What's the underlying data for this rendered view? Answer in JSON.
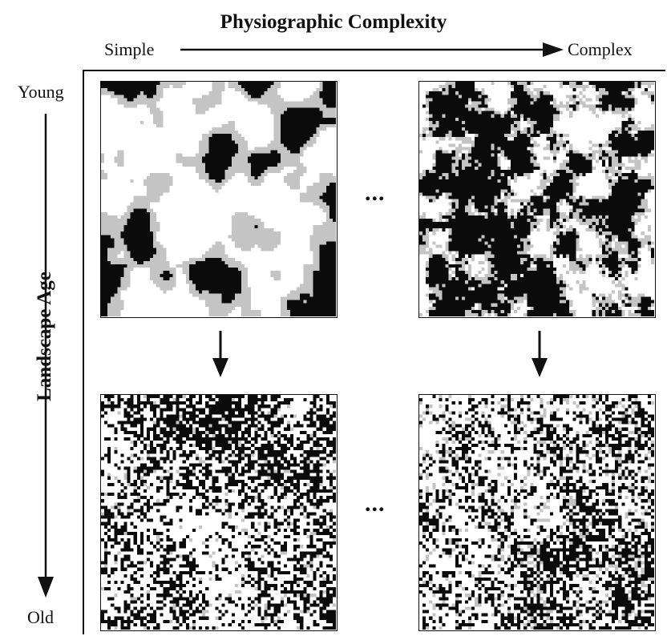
{
  "header": {
    "title": "Physiographic Complexity",
    "left_label": "Simple",
    "right_label": "Complex"
  },
  "side": {
    "top_label": "Young",
    "bottom_label": "Old",
    "axis_title": "Landscape Age"
  },
  "ellipsis": "...",
  "panels": [
    {
      "id": "young-simple",
      "age": "young",
      "complexity": "simple"
    },
    {
      "id": "young-complex",
      "age": "young",
      "complexity": "complex"
    },
    {
      "id": "old-simple",
      "age": "old",
      "complexity": "simple"
    },
    {
      "id": "old-complex",
      "age": "old",
      "complexity": "complex"
    }
  ],
  "colors": {
    "black": "#0b0b0b",
    "gray": "#c4c4c4",
    "white": "#ffffff",
    "ink": "#111111"
  }
}
